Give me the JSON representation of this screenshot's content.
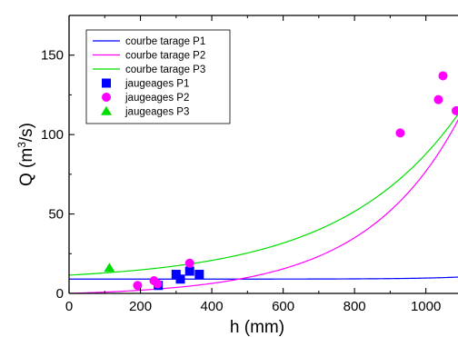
{
  "chart_data": {
    "type": "scatter",
    "xlabel": "h (mm)",
    "ylabel_main": "Q (m",
    "ylabel_sup": "3",
    "ylabel_tail": "/s)",
    "xlim": [
      0,
      1090
    ],
    "ylim": [
      0,
      175
    ],
    "xticks": [
      0,
      200,
      400,
      600,
      800,
      1000
    ],
    "xtick_labels": [
      "0",
      "200",
      "400",
      "600",
      "800",
      "1000"
    ],
    "yticks": [
      0,
      50,
      100,
      150
    ],
    "ytick_labels": [
      "0",
      "50",
      "100",
      "150"
    ],
    "grid": false,
    "legend_position": "top-left",
    "curves": [
      {
        "name": "courbe tarage P1",
        "color": "#0000ff",
        "model": "exponential",
        "params": {
          "a": 9.0,
          "b": 0.0004,
          "c": 0.9,
          "k": 0.0074
        }
      },
      {
        "name": "courbe tarage P2",
        "color": "#ff00ff",
        "model": "exponential",
        "params": {
          "a": -1.76,
          "b": 1.76,
          "c": 0,
          "k": 0.0038
        }
      },
      {
        "name": "courbe tarage P3",
        "color": "#00dd00",
        "model": "exponential",
        "params": {
          "a": 7.5,
          "b": 4.0,
          "c": 0,
          "k": 0.003
        }
      }
    ],
    "series": [
      {
        "name": "jaugeages P1",
        "color": "#0000ff",
        "marker": "square",
        "points": [
          [
            250,
            5
          ],
          [
            300,
            12
          ],
          [
            312,
            9
          ],
          [
            338,
            14
          ],
          [
            365,
            12
          ]
        ]
      },
      {
        "name": "jaugeages P2",
        "color": "#ff00ff",
        "marker": "circle",
        "points": [
          [
            192,
            5
          ],
          [
            238,
            8
          ],
          [
            248,
            6
          ],
          [
            338,
            19
          ],
          [
            928,
            101
          ],
          [
            1035,
            122
          ],
          [
            1048,
            137
          ],
          [
            1085,
            115
          ]
        ]
      },
      {
        "name": "jaugeages P3",
        "color": "#00dd00",
        "marker": "triangle",
        "points": [
          [
            113,
            16
          ]
        ]
      }
    ]
  }
}
